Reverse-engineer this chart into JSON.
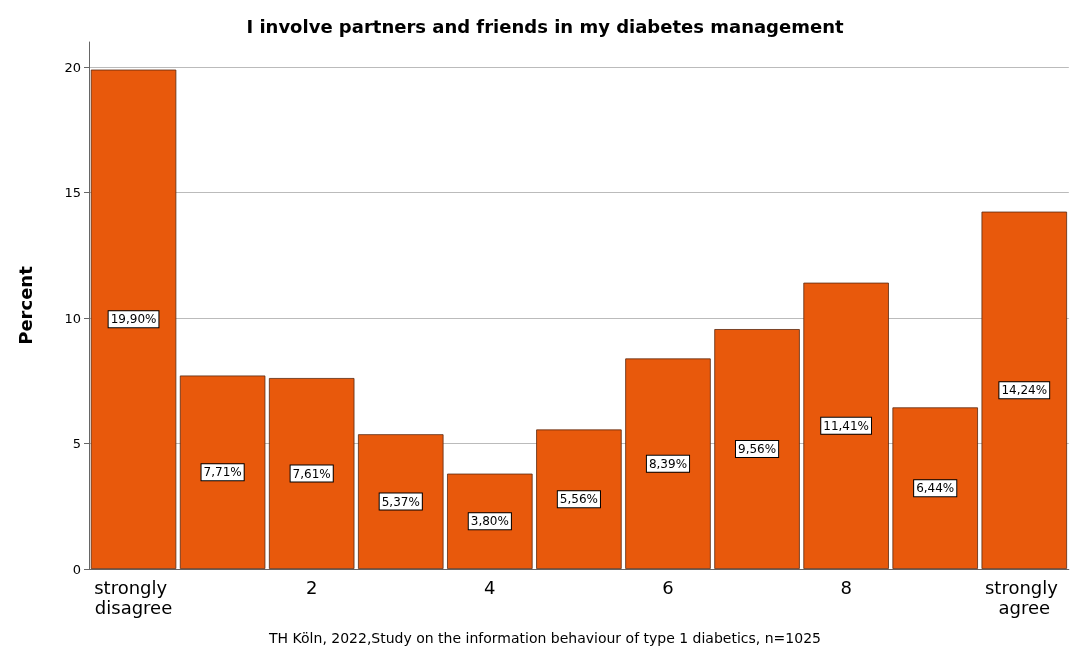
{
  "chart_data": {
    "type": "bar",
    "title": "I involve partners and friends in my diabetes management",
    "ylabel": "Percent",
    "categories": [
      "strongly disagree",
      null,
      "2",
      null,
      "4",
      null,
      "6",
      null,
      "8",
      null,
      "strongly agree"
    ],
    "values": [
      19.9,
      7.71,
      7.61,
      5.37,
      3.8,
      5.56,
      8.39,
      9.56,
      11.41,
      6.44,
      14.24
    ],
    "value_labels": [
      "19,90%",
      "7,71%",
      "7,61%",
      "5,37%",
      "3,80%",
      "5,56%",
      "8,39%",
      "9,56%",
      "11,41%",
      "6,44%",
      "14,24%"
    ],
    "color": "#e8590c",
    "ylim": [
      0,
      21
    ],
    "yticks": [
      0,
      5,
      10,
      15,
      20
    ],
    "grid": "y",
    "annotations": [
      "TH Köln, 2022,Study on the information behaviour of type 1 diabetics, n=1025"
    ]
  }
}
